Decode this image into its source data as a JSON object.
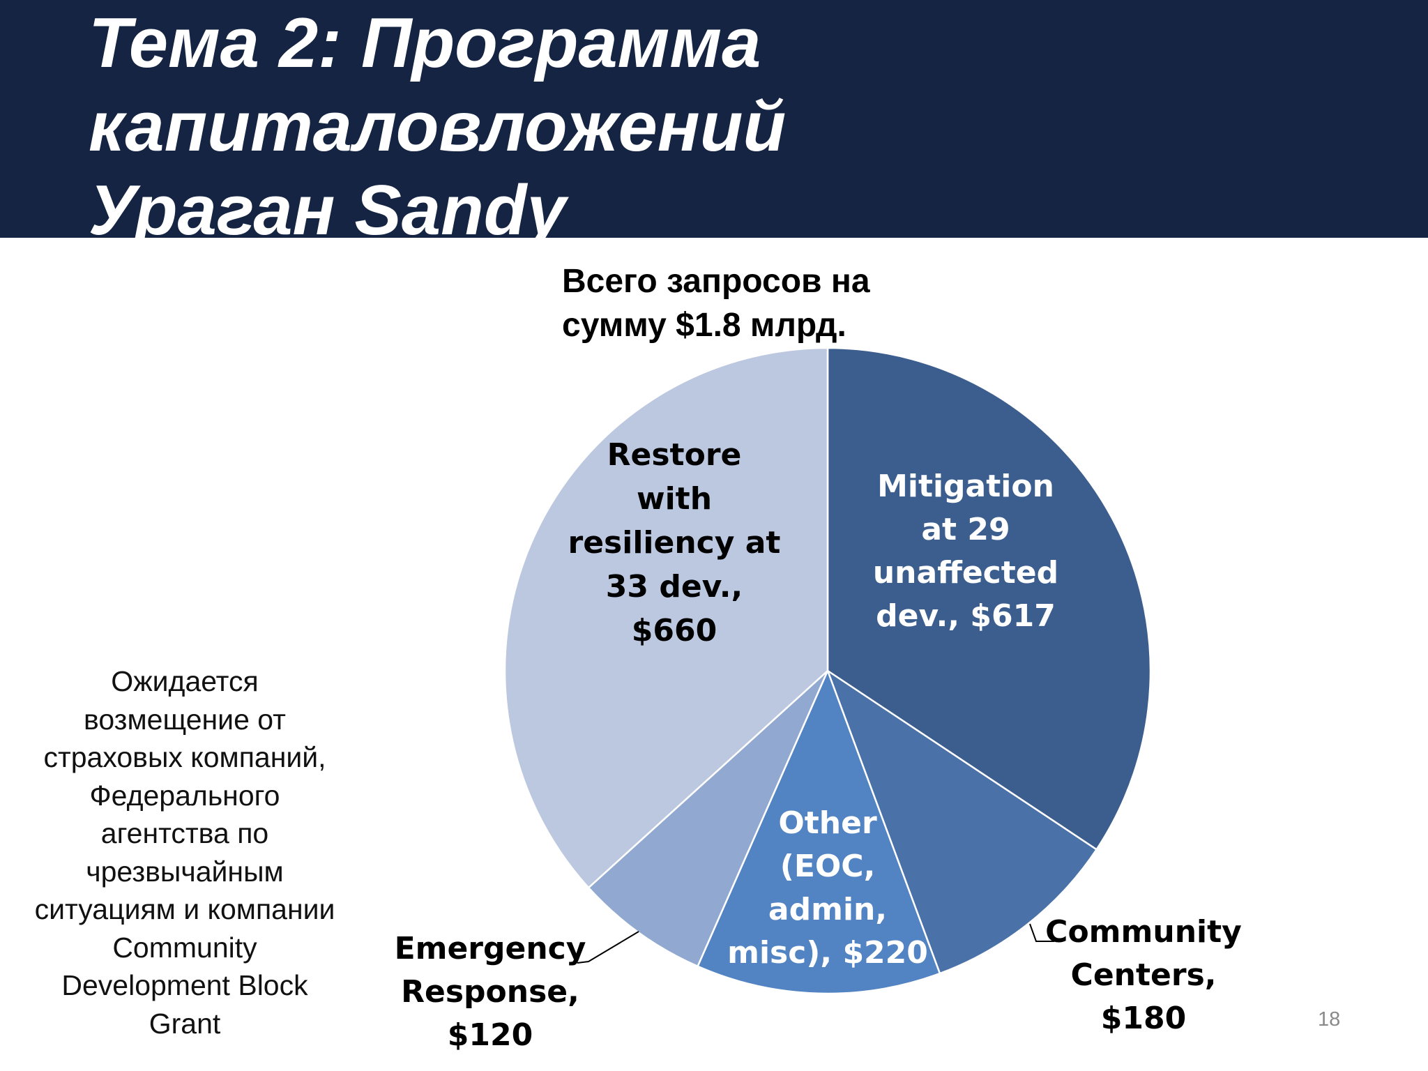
{
  "slide": {
    "title_lines": [
      "Тема 2: Программа",
      "капиталовложений",
      "Ураган Sandy"
    ],
    "side_note_lines": [
      "Ожидается",
      "возмещение от",
      "страховых компаний,",
      "Федерального",
      "агентства по",
      "чрезвычайным",
      "ситуациям и компании",
      "Community",
      "Development Block",
      "Grant"
    ],
    "page_number": "18",
    "colors": {
      "title_bar": "#142442",
      "title_text": "#ffffff"
    }
  },
  "chart_data": {
    "type": "pie",
    "title_lines": [
      "Всего запросов на",
      "сумму $1.8 млрд."
    ],
    "start_angle_deg": 0,
    "direction": "clockwise",
    "legend": "none",
    "slices": [
      {
        "category": "Mitigation at 29 unaffected dev.",
        "value": 617,
        "label_lines": [
          "Mitigation",
          "at 29",
          "unaffected",
          "dev., $617"
        ],
        "label_placement": "inside",
        "color": "#3c5e8f",
        "label_color": "#ffffff"
      },
      {
        "category": "Community Centers",
        "value": 180,
        "label_lines": [
          "Community",
          "Centers,",
          "$180"
        ],
        "label_placement": "outside",
        "color": "#4a72a8",
        "label_color": "#000000"
      },
      {
        "category": "Other (EOC, admin, misc)",
        "value": 220,
        "label_lines": [
          "Other",
          "(EOC,",
          "admin,",
          "misc), $220"
        ],
        "label_placement": "inside",
        "color": "#5283c2",
        "label_color": "#ffffff"
      },
      {
        "category": "Emergency Response",
        "value": 120,
        "label_lines": [
          "Emergency",
          "Response,",
          "$120"
        ],
        "label_placement": "outside",
        "color": "#91a8d0",
        "label_color": "#000000"
      },
      {
        "category": "Restore with resiliency at 33 dev.",
        "value": 660,
        "label_lines": [
          "Restore",
          "with",
          "resiliency at",
          "33 dev.,",
          "$660"
        ],
        "label_placement": "inside",
        "color": "#bcc8e0",
        "label_color": "#000000"
      }
    ]
  }
}
